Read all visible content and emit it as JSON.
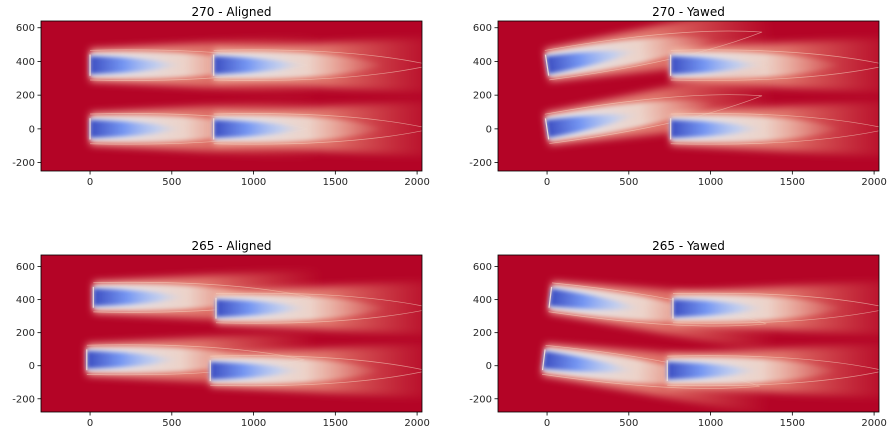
{
  "chart_data": [
    {
      "type": "heatmap",
      "title": "270 - Aligned",
      "xlim": [
        -300,
        2030
      ],
      "ylim": [
        -250,
        640
      ],
      "xticks": [
        0,
        500,
        1000,
        1500,
        2000
      ],
      "yticks": [
        -200,
        0,
        200,
        400,
        600
      ],
      "turbines": [
        {
          "x": 0,
          "y": 378,
          "yaw": 0
        },
        {
          "x": 756,
          "y": 378,
          "yaw": 0
        },
        {
          "x": 0,
          "y": 0,
          "yaw": 0
        },
        {
          "x": 756,
          "y": 0,
          "yaw": 0
        }
      ]
    },
    {
      "type": "heatmap",
      "title": "270 - Yawed",
      "xlim": [
        -300,
        2030
      ],
      "ylim": [
        -250,
        640
      ],
      "xticks": [
        0,
        500,
        1000,
        1500,
        2000
      ],
      "yticks": [
        -200,
        0,
        200,
        400,
        600
      ],
      "turbines": [
        {
          "x": 0,
          "y": 378,
          "yaw": 25
        },
        {
          "x": 756,
          "y": 378,
          "yaw": 0
        },
        {
          "x": 0,
          "y": 0,
          "yaw": 25
        },
        {
          "x": 756,
          "y": 0,
          "yaw": 0
        }
      ]
    },
    {
      "type": "heatmap",
      "title": "265 - Aligned",
      "xlim": [
        -300,
        2030
      ],
      "ylim": [
        -280,
        670
      ],
      "xticks": [
        0,
        500,
        1000,
        1500,
        2000
      ],
      "yticks": [
        -200,
        0,
        200,
        400,
        600
      ],
      "turbines": [
        {
          "x": 20,
          "y": 414,
          "yaw": 0
        },
        {
          "x": 770,
          "y": 348,
          "yaw": 0
        },
        {
          "x": -20,
          "y": 36,
          "yaw": 0
        },
        {
          "x": 735,
          "y": -30,
          "yaw": 0
        }
      ]
    },
    {
      "type": "heatmap",
      "title": "265 - Yawed",
      "xlim": [
        -300,
        2030
      ],
      "ylim": [
        -280,
        670
      ],
      "xticks": [
        0,
        500,
        1000,
        1500,
        2000
      ],
      "yticks": [
        -200,
        0,
        200,
        400,
        600
      ],
      "turbines": [
        {
          "x": 20,
          "y": 414,
          "yaw": -20
        },
        {
          "x": 770,
          "y": 348,
          "yaw": 0
        },
        {
          "x": -20,
          "y": 36,
          "yaw": -20
        },
        {
          "x": 735,
          "y": -30,
          "yaw": 0
        }
      ]
    }
  ],
  "colors": {
    "background": "#b40426",
    "freestream": "#c0172b",
    "wake_core": "#3b4cc0",
    "wake_mid": "#dddcdc",
    "wake_edge": "#f08a6c"
  }
}
